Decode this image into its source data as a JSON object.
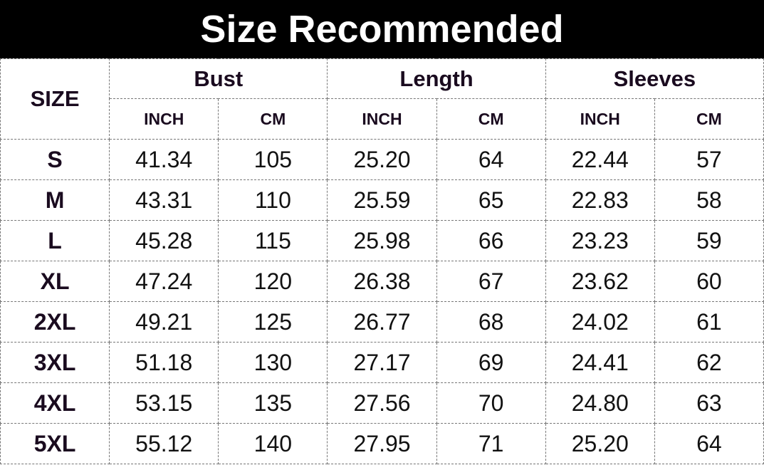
{
  "title": "Size Recommended",
  "table": {
    "size_header": "SIZE",
    "groups": [
      "Bust",
      "Length",
      "Sleeves"
    ],
    "units": [
      "INCH",
      "CM",
      "INCH",
      "CM",
      "INCH",
      "CM"
    ],
    "rows": [
      [
        "S",
        "41.34",
        "105",
        "25.20",
        "64",
        "22.44",
        "57"
      ],
      [
        "M",
        "43.31",
        "110",
        "25.59",
        "65",
        "22.83",
        "58"
      ],
      [
        "L",
        "45.28",
        "115",
        "25.98",
        "66",
        "23.23",
        "59"
      ],
      [
        "XL",
        "47.24",
        "120",
        "26.38",
        "67",
        "23.62",
        "60"
      ],
      [
        "2XL",
        "49.21",
        "125",
        "26.77",
        "68",
        "24.02",
        "61"
      ],
      [
        "3XL",
        "51.18",
        "130",
        "27.17",
        "69",
        "24.41",
        "62"
      ],
      [
        "4XL",
        "53.15",
        "135",
        "27.56",
        "70",
        "24.80",
        "63"
      ],
      [
        "5XL",
        "55.12",
        "140",
        "27.95",
        "71",
        "25.20",
        "64"
      ]
    ]
  },
  "colors": {
    "title_bg": "#000000",
    "title_text": "#ffffff",
    "border": "#777777"
  }
}
